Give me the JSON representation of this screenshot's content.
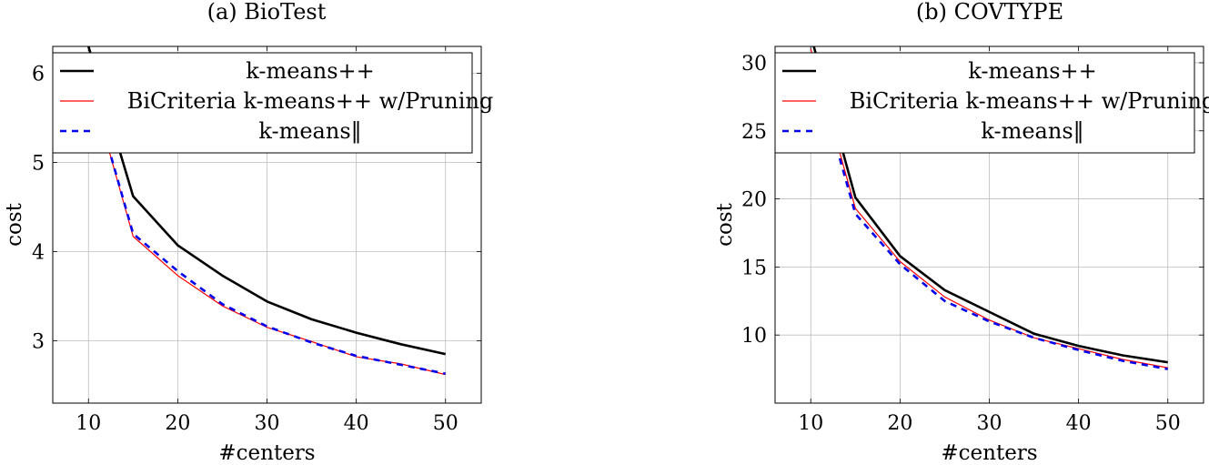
{
  "chart_data": [
    {
      "type": "line",
      "title": "(a) BioTest",
      "xlabel": "#centers",
      "ylabel": "cost",
      "xlim": [
        6,
        54
      ],
      "ylim": [
        2.3,
        6.3
      ],
      "xticks": [
        10,
        20,
        30,
        40,
        50
      ],
      "yticks": [
        3,
        4,
        5,
        6
      ],
      "grid": true,
      "legend": "top-left",
      "series": [
        {
          "name": "k-means++",
          "style": "solid-thick",
          "color": "#000000",
          "x": [
            10,
            15,
            20,
            25,
            30,
            35,
            40,
            45,
            50
          ],
          "y": [
            6.3,
            4.62,
            4.07,
            3.73,
            3.44,
            3.24,
            3.09,
            2.96,
            2.85
          ]
        },
        {
          "name": "BiCriteria k-means++ w/Pruning",
          "style": "solid-thin",
          "color": "#ff0000",
          "x": [
            10,
            15,
            20,
            25,
            30,
            35,
            40,
            45,
            50
          ],
          "y": [
            5.95,
            4.17,
            3.73,
            3.39,
            3.15,
            2.99,
            2.82,
            2.74,
            2.62
          ]
        },
        {
          "name": "k-means‖",
          "style": "dashed",
          "color": "#0000ee",
          "x": [
            10,
            15,
            20,
            25,
            30,
            35,
            40,
            45,
            50
          ],
          "y": [
            5.95,
            4.2,
            3.78,
            3.41,
            3.16,
            2.98,
            2.83,
            2.73,
            2.63
          ]
        }
      ]
    },
    {
      "type": "line",
      "title": "(b) COVTYPE",
      "xlabel": "#centers",
      "ylabel": "cost",
      "xlim": [
        6,
        54
      ],
      "ylim": [
        5,
        31.2
      ],
      "xticks": [
        10,
        20,
        30,
        40,
        50
      ],
      "yticks": [
        10,
        15,
        20,
        25,
        30
      ],
      "grid": true,
      "legend": "top-left",
      "series": [
        {
          "name": "k-means++",
          "style": "solid-thick",
          "color": "#000000",
          "x": [
            10,
            15,
            20,
            25,
            30,
            35,
            40,
            45,
            50
          ],
          "y": [
            32,
            20.1,
            15.8,
            13.3,
            11.7,
            10.1,
            9.2,
            8.5,
            8.0
          ]
        },
        {
          "name": "BiCriteria k-means++ w/Pruning",
          "style": "solid-thin",
          "color": "#ff0000",
          "x": [
            10,
            15,
            20,
            25,
            30,
            35,
            40,
            45,
            50
          ],
          "y": [
            31,
            19.3,
            15.4,
            12.8,
            11.1,
            9.8,
            9.0,
            8.2,
            7.6
          ]
        },
        {
          "name": "k-means‖",
          "style": "dashed",
          "color": "#0000ee",
          "x": [
            10,
            15,
            20,
            25,
            30,
            35,
            40,
            45,
            50
          ],
          "y": [
            30.5,
            18.9,
            15.2,
            12.5,
            11.0,
            9.8,
            8.9,
            8.1,
            7.5
          ]
        }
      ]
    }
  ]
}
